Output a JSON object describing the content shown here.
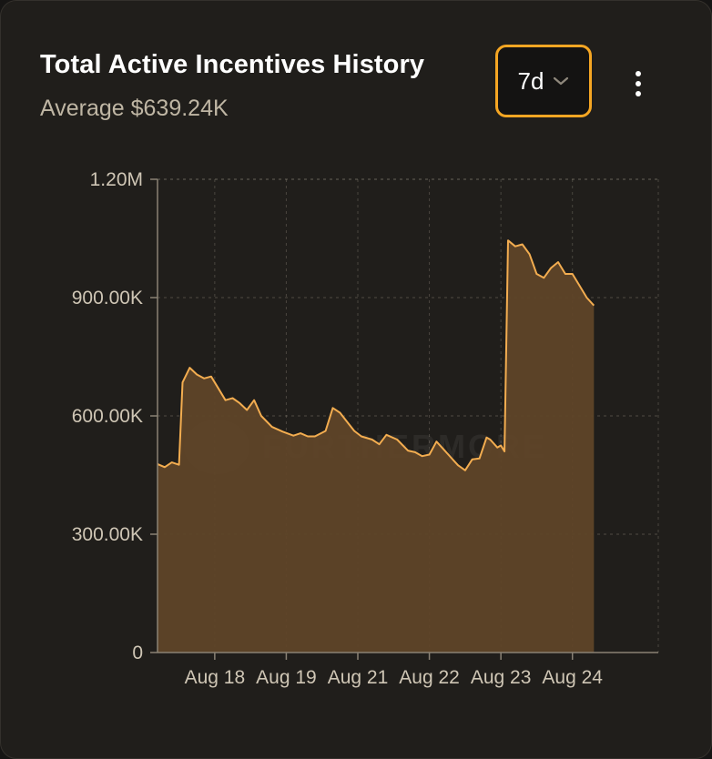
{
  "header": {
    "title": "Total Active Incentives History",
    "subtitle": "Average $639.24K"
  },
  "controls": {
    "range_selected": "7d",
    "more_menu_icon": "vertical-dots-icon"
  },
  "watermark": "FURTHERMORE",
  "colors": {
    "accent": "#f5a623",
    "line": "#f3ad50",
    "area": "#5f4528",
    "background": "#201e1b"
  },
  "chart_data": {
    "type": "area",
    "title": "Total Active Incentives History",
    "xlabel": "",
    "ylabel": "",
    "ylim": [
      0,
      1200000
    ],
    "yticks": [
      {
        "value": 0,
        "label": "0"
      },
      {
        "value": 300000,
        "label": "300.00K"
      },
      {
        "value": 600000,
        "label": "600.00K"
      },
      {
        "value": 900000,
        "label": "900.00K"
      },
      {
        "value": 1200000,
        "label": "1.20M"
      }
    ],
    "xlim": [
      0,
      7
    ],
    "xticks": [
      {
        "x": 0.8,
        "label": "Aug 18"
      },
      {
        "x": 1.8,
        "label": "Aug 19"
      },
      {
        "x": 2.8,
        "label": "Aug 21"
      },
      {
        "x": 3.8,
        "label": "Aug 22"
      },
      {
        "x": 4.8,
        "label": "Aug 23"
      },
      {
        "x": 5.8,
        "label": "Aug 24"
      }
    ],
    "grid": true,
    "series": [
      {
        "values": [
          [
            0.0,
            478000
          ],
          [
            0.1,
            470000
          ],
          [
            0.2,
            482000
          ],
          [
            0.3,
            476000
          ],
          [
            0.35,
            685000
          ],
          [
            0.45,
            722000
          ],
          [
            0.55,
            705000
          ],
          [
            0.65,
            695000
          ],
          [
            0.75,
            700000
          ],
          [
            0.85,
            670000
          ],
          [
            0.95,
            640000
          ],
          [
            1.05,
            645000
          ],
          [
            1.15,
            632000
          ],
          [
            1.25,
            615000
          ],
          [
            1.35,
            640000
          ],
          [
            1.45,
            600000
          ],
          [
            1.6,
            572000
          ],
          [
            1.75,
            560000
          ],
          [
            1.9,
            550000
          ],
          [
            2.0,
            556000
          ],
          [
            2.1,
            548000
          ],
          [
            2.2,
            548000
          ],
          [
            2.35,
            562000
          ],
          [
            2.45,
            620000
          ],
          [
            2.55,
            608000
          ],
          [
            2.65,
            585000
          ],
          [
            2.75,
            562000
          ],
          [
            2.85,
            548000
          ],
          [
            3.0,
            540000
          ],
          [
            3.1,
            528000
          ],
          [
            3.2,
            552000
          ],
          [
            3.35,
            540000
          ],
          [
            3.5,
            512000
          ],
          [
            3.6,
            508000
          ],
          [
            3.7,
            498000
          ],
          [
            3.8,
            502000
          ],
          [
            3.9,
            535000
          ],
          [
            4.0,
            515000
          ],
          [
            4.1,
            495000
          ],
          [
            4.2,
            475000
          ],
          [
            4.3,
            462000
          ],
          [
            4.4,
            490000
          ],
          [
            4.5,
            492000
          ],
          [
            4.6,
            545000
          ],
          [
            4.65,
            540000
          ],
          [
            4.75,
            520000
          ],
          [
            4.8,
            525000
          ],
          [
            4.85,
            510000
          ],
          [
            4.9,
            1045000
          ],
          [
            5.0,
            1030000
          ],
          [
            5.1,
            1035000
          ],
          [
            5.2,
            1010000
          ],
          [
            5.3,
            960000
          ],
          [
            5.4,
            950000
          ],
          [
            5.5,
            975000
          ],
          [
            5.6,
            990000
          ],
          [
            5.7,
            960000
          ],
          [
            5.8,
            960000
          ],
          [
            5.9,
            930000
          ],
          [
            6.0,
            900000
          ],
          [
            6.1,
            880000
          ]
        ]
      }
    ]
  }
}
